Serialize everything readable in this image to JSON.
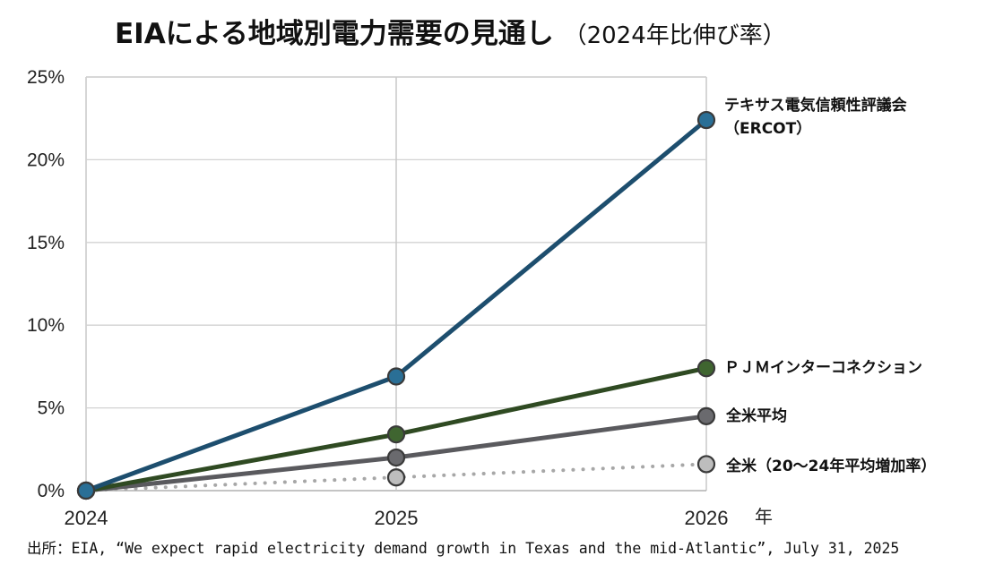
{
  "chart_data": {
    "type": "line",
    "title": "EIAによる地域別電力需要の見通し",
    "subtitle": "（2024年比伸び率）",
    "x": [
      "2024",
      "2025",
      "2026"
    ],
    "xlabel": "年",
    "ylabel": "",
    "ylim": [
      0,
      25
    ],
    "yticks": [
      "0%",
      "5%",
      "10%",
      "15%",
      "20%",
      "25%"
    ],
    "grid": true,
    "series": [
      {
        "name": "テキサス電気信頼性評議会",
        "name_line2": "（ERCOT）",
        "values": [
          0,
          6.9,
          22.4
        ],
        "color": "#1d4e6e",
        "marker_color": "#2a6f96",
        "style": "solid"
      },
      {
        "name": "ＰＪＭインターコネクション",
        "values": [
          0,
          3.4,
          7.4
        ],
        "color": "#2f4a22",
        "marker_color": "#3f6530",
        "style": "solid"
      },
      {
        "name": "全米平均",
        "values": [
          0,
          2.0,
          4.5
        ],
        "color": "#5a5a5e",
        "marker_color": "#6a6a6e",
        "style": "solid"
      },
      {
        "name": "全米（20～24年平均増加率）",
        "values": [
          0,
          0.8,
          1.6
        ],
        "color": "#a7a7a7",
        "marker_color": "#bdbdbd",
        "style": "dotted"
      }
    ],
    "source": "出所：EIA, “We expect rapid electricity demand growth in Texas and the mid-Atlantic”, July 31, 2025"
  }
}
